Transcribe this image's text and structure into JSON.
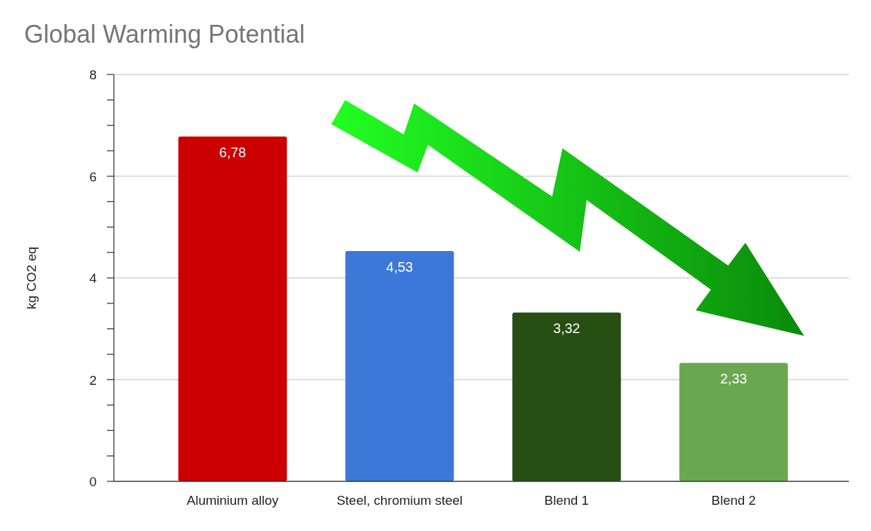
{
  "chart_data": {
    "type": "bar",
    "title": "Global Warming Potential",
    "ylabel": "kg CO2 eq",
    "categories": [
      "Aluminium alloy",
      "Steel, chromium steel",
      "Blend 1",
      "Blend 2"
    ],
    "values": [
      6.78,
      4.53,
      3.32,
      2.33
    ],
    "colors": [
      "#cc0000",
      "#3c78d8",
      "#274e13",
      "#6aa84f"
    ],
    "value_labels": [
      "6,78",
      "4,53",
      "3,32",
      "2,33"
    ],
    "ylim": [
      0,
      8
    ],
    "yticks": [
      0,
      {
        "value": 0.5,
        "label": null
      },
      {
        "value": 1,
        "label": null
      },
      {
        "value": 1.5,
        "label": null
      },
      2,
      {
        "value": 2.5,
        "label": null
      },
      {
        "value": 3,
        "label": null
      },
      {
        "value": 3.5,
        "label": null
      },
      4,
      {
        "value": 4.5,
        "label": null
      },
      {
        "value": 5,
        "label": null
      },
      {
        "value": 5.5,
        "label": null
      },
      6,
      {
        "value": 6.5,
        "label": null
      },
      {
        "value": 7,
        "label": null
      },
      {
        "value": 7.5,
        "label": null
      },
      8
    ],
    "grid": "y"
  }
}
